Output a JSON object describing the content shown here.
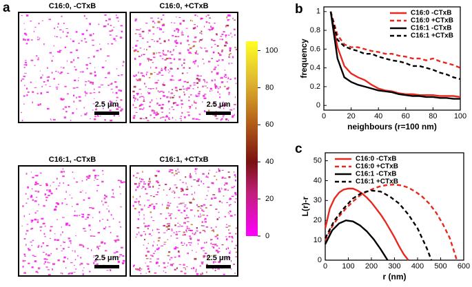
{
  "panel_labels": [
    "a",
    "b",
    "c"
  ],
  "images": [
    {
      "title": "C16:0, -CTxB",
      "scale_label": "2.5 μm"
    },
    {
      "title": "C16:0, +CTxB",
      "scale_label": "2.5 μm"
    },
    {
      "title": "C16:1, -CTxB",
      "scale_label": "2.5 μm"
    },
    {
      "title": "C16:1, +CTxB",
      "scale_label": "2.5 μm"
    }
  ],
  "colorbar": {
    "lim": [
      0,
      105
    ],
    "ticks": [
      0,
      20,
      40,
      60,
      80,
      100
    ]
  },
  "chart_data": [
    {
      "type": "line",
      "xlabel": "neighbours (r=100 nm)",
      "ylabel": "frequency",
      "x": [
        5,
        10,
        15,
        20,
        25,
        30,
        35,
        40,
        45,
        50,
        55,
        60,
        65,
        70,
        75,
        80,
        85,
        90,
        95,
        100
      ],
      "xlim": [
        0,
        100
      ],
      "xticks": [
        0,
        20,
        40,
        60,
        80,
        100
      ],
      "ylim": [
        -0.05,
        1.05
      ],
      "yticks": [
        0,
        0.2,
        0.4,
        0.6,
        0.8,
        1
      ],
      "legend": "upper right",
      "series": [
        {
          "name": "C16:0 -CTxB",
          "color": "#e8281e",
          "linestyle": "solid",
          "values": [
            1,
            0.62,
            0.42,
            0.34,
            0.3,
            0.27,
            0.22,
            0.18,
            0.16,
            0.15,
            0.13,
            0.12,
            0.12,
            0.11,
            0.11,
            0.11,
            0.1,
            0.1,
            0.1,
            0.09
          ]
        },
        {
          "name": "C16:0 +CTxB",
          "color": "#e8281e",
          "linestyle": "dashed",
          "values": [
            1,
            0.75,
            0.65,
            0.62,
            0.62,
            0.6,
            0.58,
            0.57,
            0.55,
            0.55,
            0.53,
            0.52,
            0.5,
            0.5,
            0.48,
            0.5,
            0.47,
            0.45,
            0.43,
            0.4
          ]
        },
        {
          "name": "C16:1 -CTxB",
          "color": "#000000",
          "linestyle": "solid",
          "values": [
            1,
            0.5,
            0.3,
            0.25,
            0.22,
            0.2,
            0.18,
            0.16,
            0.15,
            0.14,
            0.12,
            0.11,
            0.1,
            0.1,
            0.09,
            0.09,
            0.08,
            0.08,
            0.07,
            0.07
          ]
        },
        {
          "name": "C16:1 +CTxB",
          "color": "#000000",
          "linestyle": "dashed",
          "values": [
            1,
            0.7,
            0.63,
            0.6,
            0.58,
            0.55,
            0.55,
            0.52,
            0.5,
            0.48,
            0.47,
            0.45,
            0.42,
            0.42,
            0.4,
            0.38,
            0.35,
            0.33,
            0.3,
            0.28
          ]
        }
      ]
    },
    {
      "type": "line",
      "xlabel": "r (nm)",
      "ylabel": "L(r)-r",
      "xlim": [
        0,
        600
      ],
      "xticks": [
        0,
        100,
        200,
        300,
        400,
        500,
        600
      ],
      "ylim": [
        0,
        54
      ],
      "yticks": [
        0,
        10,
        20,
        30,
        40,
        50
      ],
      "legend": "upper left",
      "series": [
        {
          "name": "C16:0 -CTxB",
          "color": "#e8281e",
          "linestyle": "solid",
          "x": [
            0,
            20,
            40,
            60,
            80,
            100,
            120,
            140,
            160,
            180,
            200,
            220,
            240,
            260,
            280,
            300,
            320,
            340,
            360
          ],
          "values": [
            16,
            26,
            31,
            34,
            35.5,
            36,
            36,
            35,
            33.5,
            31.5,
            29,
            26,
            23,
            19.5,
            15.5,
            11.5,
            7,
            3,
            0
          ]
        },
        {
          "name": "C16:0 +CTxB",
          "color": "#e8281e",
          "linestyle": "dashed",
          "x": [
            0,
            30,
            60,
            90,
            120,
            150,
            180,
            210,
            240,
            270,
            300,
            330,
            360,
            390,
            420,
            450,
            480,
            510,
            540,
            570
          ],
          "values": [
            10,
            17,
            22,
            26,
            29.5,
            32.5,
            34.5,
            36,
            37.2,
            37.8,
            38,
            37.6,
            36.5,
            34.5,
            32,
            28.5,
            24,
            18,
            11,
            0
          ]
        },
        {
          "name": "C16:1 -CTxB",
          "color": "#000000",
          "linestyle": "solid",
          "x": [
            0,
            30,
            60,
            90,
            120,
            150,
            180,
            210,
            240,
            270
          ],
          "values": [
            8,
            15,
            18.5,
            20,
            19.5,
            17.5,
            14.5,
            10.5,
            5.5,
            0
          ]
        },
        {
          "name": "C16:1 +CTxB",
          "color": "#000000",
          "linestyle": "dashed",
          "x": [
            0,
            40,
            80,
            120,
            160,
            200,
            240,
            280,
            320,
            360,
            400,
            440,
            460
          ],
          "values": [
            11,
            20,
            26,
            31,
            34,
            35,
            34.5,
            32,
            28.5,
            23,
            16,
            6,
            0
          ]
        }
      ]
    }
  ]
}
